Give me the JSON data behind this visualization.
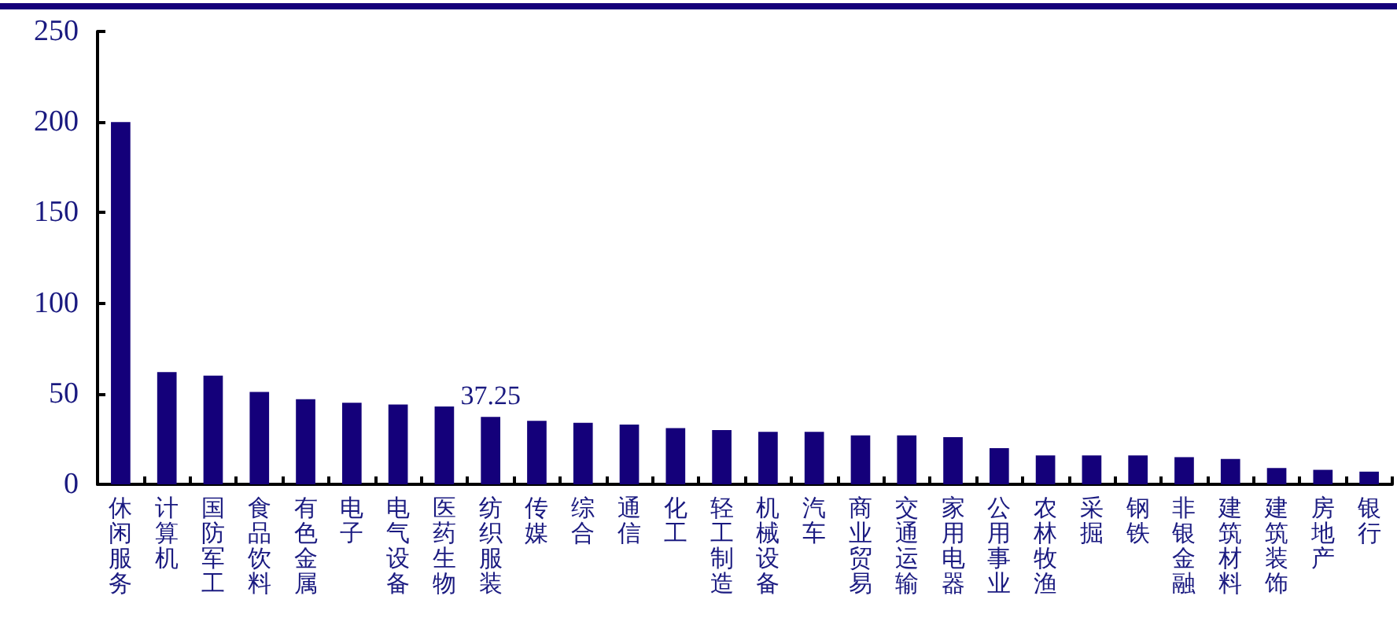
{
  "chart_data": {
    "type": "bar",
    "categories": [
      "休闲服务",
      "计算机",
      "国防军工",
      "食品饮料",
      "有色金属",
      "电子",
      "电气设备",
      "医药生物",
      "纺织服装",
      "传媒",
      "综合",
      "通信",
      "化工",
      "轻工制造",
      "机械设备",
      "汽车",
      "商业贸易",
      "交通运输",
      "家用电器",
      "公用事业",
      "农林牧渔",
      "采掘",
      "钢铁",
      "非银金融",
      "建筑材料",
      "建筑装饰",
      "房地产",
      "银行"
    ],
    "values": [
      200,
      62,
      60,
      51,
      47,
      45,
      44,
      43,
      37.25,
      35,
      34,
      33,
      31,
      30,
      29,
      29,
      27,
      27,
      26,
      20,
      16,
      16,
      16,
      15,
      14,
      9,
      8,
      7
    ],
    "value_labels": [
      null,
      null,
      null,
      null,
      null,
      null,
      null,
      null,
      "37.25",
      null,
      null,
      null,
      null,
      null,
      null,
      null,
      null,
      null,
      null,
      null,
      null,
      null,
      null,
      null,
      null,
      null,
      null,
      null
    ],
    "color": "#14007a",
    "ylim": [
      0,
      250
    ],
    "yticks": [
      0,
      50,
      100,
      150,
      200,
      250
    ],
    "grid": false
  }
}
